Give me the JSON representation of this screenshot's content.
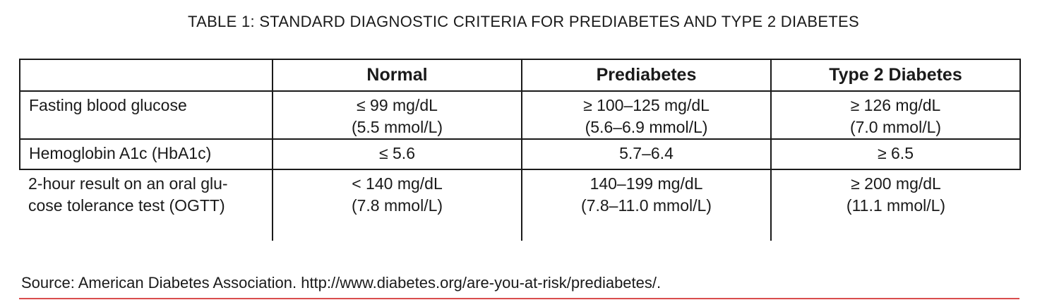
{
  "title": "TABLE 1: STANDARD DIAGNOSTIC CRITERIA FOR PREDIABETES AND TYPE 2 DIABETES",
  "table": {
    "headers": [
      "",
      "Normal",
      "Prediabetes",
      "Type 2 Diabetes"
    ],
    "rows": [
      {
        "label": [
          "Fasting blood glucose"
        ],
        "normal": [
          "≤ 99 mg/dL",
          "(5.5 mmol/L)"
        ],
        "prediabetes": [
          "≥ 100–125 mg/dL",
          "(5.6–6.9 mmol/L)"
        ],
        "type2": [
          "≥ 126 mg/dL",
          "(7.0 mmol/L)"
        ]
      },
      {
        "label": [
          "Hemoglobin A1c (HbA1c)"
        ],
        "normal": [
          "≤ 5.6"
        ],
        "prediabetes": [
          "5.7–6.4"
        ],
        "type2": [
          "≥ 6.5"
        ]
      },
      {
        "label": [
          "2-hour result on an oral glu-",
          "cose tolerance test (OGTT)"
        ],
        "normal": [
          "< 140 mg/dL",
          "(7.8 mmol/L)"
        ],
        "prediabetes": [
          "140–199 mg/dL",
          "(7.8–11.0 mmol/L)"
        ],
        "type2": [
          "≥ 200 mg/dL",
          "(11.1 mmol/L)"
        ]
      }
    ]
  },
  "source": "Source: American Diabetes Association. http://www.diabetes.org/are-you-at-risk/prediabetes/.",
  "colors": {
    "text": "#1a1a1a",
    "rule": "#d94c4c"
  }
}
